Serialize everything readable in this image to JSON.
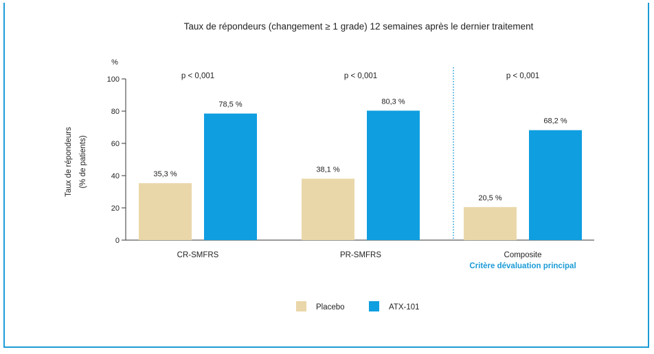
{
  "chart_data": {
    "type": "bar",
    "title": "Taux de répondeurs (changement ≥ 1 grade) 12 semaines après le dernier traitement",
    "unit_label": "%",
    "ylabel": [
      "Taux de répondeurs",
      "(% de patients)"
    ],
    "ylim": [
      0,
      100
    ],
    "yticks": [
      "0",
      "20",
      "40",
      "60",
      "80",
      "100"
    ],
    "grid": false,
    "legend_position": "bottom-center",
    "categories": [
      "CR-SMFRS",
      "PR-SMFRS",
      "Composite"
    ],
    "category_sublabels": [
      "",
      "",
      "Critère dévaluation principal"
    ],
    "pvalues": [
      "p < 0,001",
      "p < 0,001",
      "p < 0,001"
    ],
    "series": [
      {
        "name": "Placebo",
        "color": "#ead7a9",
        "values": [
          35.3,
          38.1,
          20.5
        ],
        "labels": [
          "35,3 %",
          "38,1 %",
          "20,5 %"
        ]
      },
      {
        "name": "ATX-101",
        "color": "#0f9ee0",
        "values": [
          78.5,
          80.3,
          68.2
        ],
        "labels": [
          "78,5 %",
          "80,3 %",
          "68,2 %"
        ]
      }
    ],
    "accent_color": "#1a9bd7"
  }
}
